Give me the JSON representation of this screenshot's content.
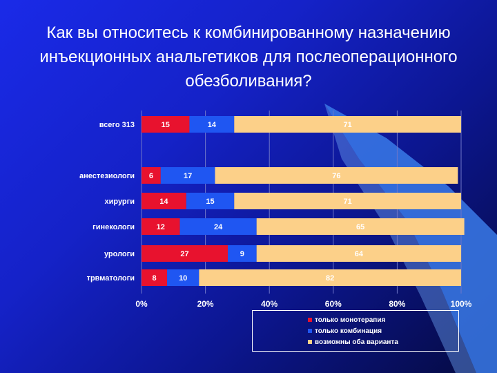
{
  "title": "Как вы относитесь к комбинированному назначению инъекционных анальгетиков для послеоперационного обезболивания?",
  "colors": {
    "mono": "#e8122e",
    "combo": "#1f56f2",
    "both": "#fcd089"
  },
  "chart_data": {
    "type": "bar",
    "orientation": "horizontal",
    "stacked": true,
    "percent": true,
    "categories": [
      "всего 313",
      "анестезиологи",
      "хирурги",
      "гинекологи",
      "урологи",
      "трвматологи"
    ],
    "series": [
      {
        "name": "только монотерапия",
        "values": [
          15,
          6,
          14,
          12,
          27,
          8
        ]
      },
      {
        "name": "только комбинация",
        "values": [
          14,
          17,
          15,
          24,
          9,
          10
        ]
      },
      {
        "name": "возможны оба варианта",
        "values": [
          71,
          76,
          71,
          65,
          64,
          82
        ]
      }
    ],
    "xticks": [
      "0%",
      "20%",
      "40%",
      "60%",
      "80%",
      "100%"
    ],
    "xlim": [
      0,
      100
    ],
    "grid": true,
    "legend_position": "bottom-right"
  }
}
